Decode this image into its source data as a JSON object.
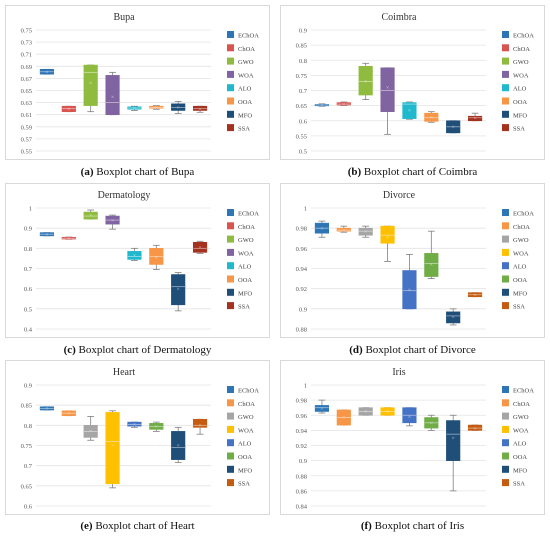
{
  "chart_data": [
    {
      "type": "boxplot",
      "title": "Bupa",
      "caption_letter": "(a)",
      "caption_text": "Boxplot chart of Bupa",
      "yticks": [
        "0.55",
        "0.57",
        "0.59",
        "0.61",
        "0.63",
        "0.65",
        "0.67",
        "0.69",
        "0.71",
        "0.73",
        "0.75"
      ],
      "ylim": [
        0.55,
        0.75
      ],
      "legend_placement": "right",
      "series": [
        {
          "name": "EChOA",
          "color": "#2e75b6",
          "min": 0.677,
          "q1": 0.677,
          "median": 0.681,
          "q3": 0.685,
          "max": 0.685,
          "mean": 0.681
        },
        {
          "name": "ChOA",
          "color": "#d9534f",
          "min": 0.615,
          "q1": 0.615,
          "median": 0.62,
          "q3": 0.624,
          "max": 0.624,
          "mean": 0.62
        },
        {
          "name": "GWO",
          "color": "#8fbc3f",
          "min": 0.615,
          "q1": 0.625,
          "median": 0.68,
          "q3": 0.692,
          "max": 0.692,
          "mean": 0.663
        },
        {
          "name": "WOA",
          "color": "#8064a2",
          "min": 0.61,
          "q1": 0.61,
          "median": 0.63,
          "q3": 0.675,
          "max": 0.68,
          "mean": 0.64
        },
        {
          "name": "ALO",
          "color": "#1fb8cd",
          "min": 0.617,
          "q1": 0.619,
          "median": 0.621,
          "q3": 0.623,
          "max": 0.624,
          "mean": 0.621
        },
        {
          "name": "OOA",
          "color": "#f79646",
          "min": 0.619,
          "q1": 0.621,
          "median": 0.622,
          "q3": 0.624,
          "max": 0.625,
          "mean": 0.622
        },
        {
          "name": "MFO",
          "color": "#1f4e79",
          "min": 0.612,
          "q1": 0.617,
          "median": 0.622,
          "q3": 0.628,
          "max": 0.632,
          "mean": 0.622
        },
        {
          "name": "SSA",
          "color": "#a5311f",
          "min": 0.614,
          "q1": 0.617,
          "median": 0.62,
          "q3": 0.624,
          "max": 0.624,
          "mean": 0.62
        }
      ]
    },
    {
      "type": "boxplot",
      "title": "Coimbra",
      "caption_letter": "(b)",
      "caption_text": "Boxplot chart of Coimbra",
      "yticks": [
        "0.5",
        "0.55",
        "0.6",
        "0.65",
        "0.7",
        "0.75",
        "0.8",
        "0.85",
        "0.9"
      ],
      "ylim": [
        0.5,
        0.9
      ],
      "legend_placement": "right",
      "series": [
        {
          "name": "EChOA",
          "color": "#2e75b6",
          "min": 0.648,
          "q1": 0.65,
          "median": 0.652,
          "q3": 0.654,
          "max": 0.656,
          "mean": 0.652
        },
        {
          "name": "ChOA",
          "color": "#d9534f",
          "min": 0.65,
          "q1": 0.652,
          "median": 0.655,
          "q3": 0.66,
          "max": 0.662,
          "mean": 0.655
        },
        {
          "name": "GWO",
          "color": "#8fbc3f",
          "min": 0.67,
          "q1": 0.685,
          "median": 0.73,
          "q3": 0.78,
          "max": 0.79,
          "mean": 0.73
        },
        {
          "name": "WOA",
          "color": "#8064a2",
          "min": 0.555,
          "q1": 0.63,
          "median": 0.7,
          "q3": 0.775,
          "max": 0.775,
          "mean": 0.71
        },
        {
          "name": "ALO",
          "color": "#1fb8cd",
          "min": 0.605,
          "q1": 0.607,
          "median": 0.655,
          "q3": 0.66,
          "max": 0.662,
          "mean": 0.635
        },
        {
          "name": "OOA",
          "color": "#f79646",
          "min": 0.595,
          "q1": 0.598,
          "median": 0.61,
          "q3": 0.625,
          "max": 0.63,
          "mean": 0.612
        },
        {
          "name": "MFO",
          "color": "#1f4e79",
          "min": 0.56,
          "q1": 0.56,
          "median": 0.58,
          "q3": 0.6,
          "max": 0.6,
          "mean": 0.58
        },
        {
          "name": "SSA",
          "color": "#a5311f",
          "min": 0.6,
          "q1": 0.6,
          "median": 0.61,
          "q3": 0.615,
          "max": 0.625,
          "mean": 0.61
        }
      ]
    },
    {
      "type": "boxplot",
      "title": "Dermatology",
      "caption_letter": "(c)",
      "caption_text": "Boxplot chart of Dermatology",
      "yticks": [
        "0.4",
        "0.5",
        "0.6",
        "0.7",
        "0.8",
        "0.9",
        "1"
      ],
      "ylim": [
        0.4,
        1.0
      ],
      "legend_placement": "right",
      "series": [
        {
          "name": "EChOA",
          "color": "#2e75b6",
          "min": 0.862,
          "q1": 0.862,
          "median": 0.87,
          "q3": 0.878,
          "max": 0.878,
          "mean": 0.87
        },
        {
          "name": "ChOA",
          "color": "#d9534f",
          "min": 0.845,
          "q1": 0.846,
          "median": 0.85,
          "q3": 0.855,
          "max": 0.856,
          "mean": 0.85
        },
        {
          "name": "GWO",
          "color": "#8fbc3f",
          "min": 0.945,
          "q1": 0.945,
          "median": 0.96,
          "q3": 0.98,
          "max": 0.99,
          "mean": 0.965
        },
        {
          "name": "WOA",
          "color": "#8064a2",
          "min": 0.895,
          "q1": 0.92,
          "median": 0.94,
          "q3": 0.96,
          "max": 0.965,
          "mean": 0.94
        },
        {
          "name": "ALO",
          "color": "#1fb8cd",
          "min": 0.74,
          "q1": 0.745,
          "median": 0.76,
          "q3": 0.785,
          "max": 0.8,
          "mean": 0.765
        },
        {
          "name": "OOA",
          "color": "#f79646",
          "min": 0.695,
          "q1": 0.72,
          "median": 0.76,
          "q3": 0.8,
          "max": 0.815,
          "mean": 0.755
        },
        {
          "name": "MFO",
          "color": "#1f4e79",
          "min": 0.49,
          "q1": 0.52,
          "median": 0.61,
          "q3": 0.67,
          "max": 0.68,
          "mean": 0.6
        },
        {
          "name": "SSA",
          "color": "#a5311f",
          "min": 0.775,
          "q1": 0.78,
          "median": 0.8,
          "q3": 0.83,
          "max": 0.835,
          "mean": 0.805
        }
      ]
    },
    {
      "type": "boxplot",
      "title": "Divorce",
      "caption_letter": "(d)",
      "caption_text": "Boxplot chart of Divorce",
      "yticks": [
        "0.88",
        "0.9",
        "0.92",
        "0.94",
        "0.96",
        "0.98",
        "1"
      ],
      "ylim": [
        0.88,
        1.0
      ],
      "legend_placement": "right",
      "series": [
        {
          "name": "EChOA",
          "color": "#2e75b6",
          "min": 0.971,
          "q1": 0.975,
          "median": 0.98,
          "q3": 0.985,
          "max": 0.987,
          "mean": 0.98
        },
        {
          "name": "ChOA",
          "color": "#f79646",
          "min": 0.976,
          "q1": 0.977,
          "median": 0.978,
          "q3": 0.98,
          "max": 0.982,
          "mean": 0.978
        },
        {
          "name": "GWO",
          "color": "#a5a5a5",
          "min": 0.971,
          "q1": 0.973,
          "median": 0.977,
          "q3": 0.98,
          "max": 0.982,
          "mean": 0.977
        },
        {
          "name": "WOA",
          "color": "#ffc000",
          "min": 0.947,
          "q1": 0.965,
          "median": 0.973,
          "q3": 0.982,
          "max": 0.982,
          "mean": 0.971
        },
        {
          "name": "ALO",
          "color": "#4472c4",
          "min": 0.9,
          "q1": 0.9,
          "median": 0.918,
          "q3": 0.938,
          "max": 0.954,
          "mean": 0.919
        },
        {
          "name": "OOA",
          "color": "#70ad47",
          "min": 0.93,
          "q1": 0.932,
          "median": 0.945,
          "q3": 0.955,
          "max": 0.977,
          "mean": 0.944
        },
        {
          "name": "MFO",
          "color": "#1f4e79",
          "min": 0.884,
          "q1": 0.886,
          "median": 0.893,
          "q3": 0.897,
          "max": 0.9,
          "mean": 0.892
        },
        {
          "name": "SSA",
          "color": "#c55a11",
          "min": 0.912,
          "q1": 0.912,
          "median": 0.914,
          "q3": 0.916,
          "max": 0.916,
          "mean": 0.914
        }
      ]
    },
    {
      "type": "boxplot",
      "title": "Heart",
      "caption_letter": "(e)",
      "caption_text": "Boxplot chart of Heart",
      "yticks": [
        "0.6",
        "0.65",
        "0.7",
        "0.75",
        "0.8",
        "0.85",
        "0.9"
      ],
      "ylim": [
        0.6,
        0.9
      ],
      "legend_placement": "right",
      "series": [
        {
          "name": "EChOA",
          "color": "#2e75b6",
          "min": 0.838,
          "q1": 0.838,
          "median": 0.842,
          "q3": 0.846,
          "max": 0.846,
          "mean": 0.842
        },
        {
          "name": "ChOA",
          "color": "#f79646",
          "min": 0.824,
          "q1": 0.824,
          "median": 0.83,
          "q3": 0.836,
          "max": 0.836,
          "mean": 0.83
        },
        {
          "name": "GWO",
          "color": "#a5a5a5",
          "min": 0.763,
          "q1": 0.77,
          "median": 0.785,
          "q3": 0.8,
          "max": 0.822,
          "mean": 0.786
        },
        {
          "name": "WOA",
          "color": "#ffc000",
          "min": 0.645,
          "q1": 0.655,
          "median": 0.76,
          "q3": 0.832,
          "max": 0.836,
          "mean": 0.75
        },
        {
          "name": "ALO",
          "color": "#4472c4",
          "min": 0.795,
          "q1": 0.798,
          "median": 0.802,
          "q3": 0.808,
          "max": 0.808,
          "mean": 0.802
        },
        {
          "name": "OOA",
          "color": "#70ad47",
          "min": 0.785,
          "q1": 0.79,
          "median": 0.797,
          "q3": 0.805,
          "max": 0.808,
          "mean": 0.797
        },
        {
          "name": "MFO",
          "color": "#1f4e79",
          "min": 0.708,
          "q1": 0.715,
          "median": 0.745,
          "q3": 0.785,
          "max": 0.795,
          "mean": 0.75
        },
        {
          "name": "SSA",
          "color": "#c55a11",
          "min": 0.778,
          "q1": 0.795,
          "median": 0.8,
          "q3": 0.815,
          "max": 0.815,
          "mean": 0.8
        }
      ]
    },
    {
      "type": "boxplot",
      "title": "Iris",
      "caption_letter": "(f)",
      "caption_text": "Boxplot chart of Iris",
      "yticks": [
        "0.84",
        "0.86",
        "0.88",
        "0.9",
        "0.92",
        "0.94",
        "0.96",
        "0.98",
        "1"
      ],
      "ylim": [
        0.84,
        1.0
      ],
      "legend_placement": "right",
      "series": [
        {
          "name": "EChOA",
          "color": "#2e75b6",
          "min": 0.963,
          "q1": 0.965,
          "median": 0.97,
          "q3": 0.973,
          "max": 0.98,
          "mean": 0.969
        },
        {
          "name": "ChOA",
          "color": "#f79646",
          "min": 0.947,
          "q1": 0.947,
          "median": 0.957,
          "q3": 0.967,
          "max": 0.967,
          "mean": 0.957
        },
        {
          "name": "GWO",
          "color": "#a5a5a5",
          "min": 0.96,
          "q1": 0.96,
          "median": 0.965,
          "q3": 0.97,
          "max": 0.97,
          "mean": 0.965
        },
        {
          "name": "WOA",
          "color": "#ffc000",
          "min": 0.96,
          "q1": 0.96,
          "median": 0.965,
          "q3": 0.97,
          "max": 0.97,
          "mean": 0.965
        },
        {
          "name": "ALO",
          "color": "#4472c4",
          "min": 0.946,
          "q1": 0.95,
          "median": 0.96,
          "q3": 0.97,
          "max": 0.97,
          "mean": 0.958
        },
        {
          "name": "OOA",
          "color": "#70ad47",
          "min": 0.94,
          "q1": 0.943,
          "median": 0.95,
          "q3": 0.957,
          "max": 0.96,
          "mean": 0.95
        },
        {
          "name": "MFO",
          "color": "#1f4e79",
          "min": 0.86,
          "q1": 0.9,
          "median": 0.935,
          "q3": 0.953,
          "max": 0.96,
          "mean": 0.93
        },
        {
          "name": "SSA",
          "color": "#c55a11",
          "min": 0.94,
          "q1": 0.94,
          "median": 0.943,
          "q3": 0.947,
          "max": 0.947,
          "mean": 0.943
        }
      ]
    }
  ]
}
